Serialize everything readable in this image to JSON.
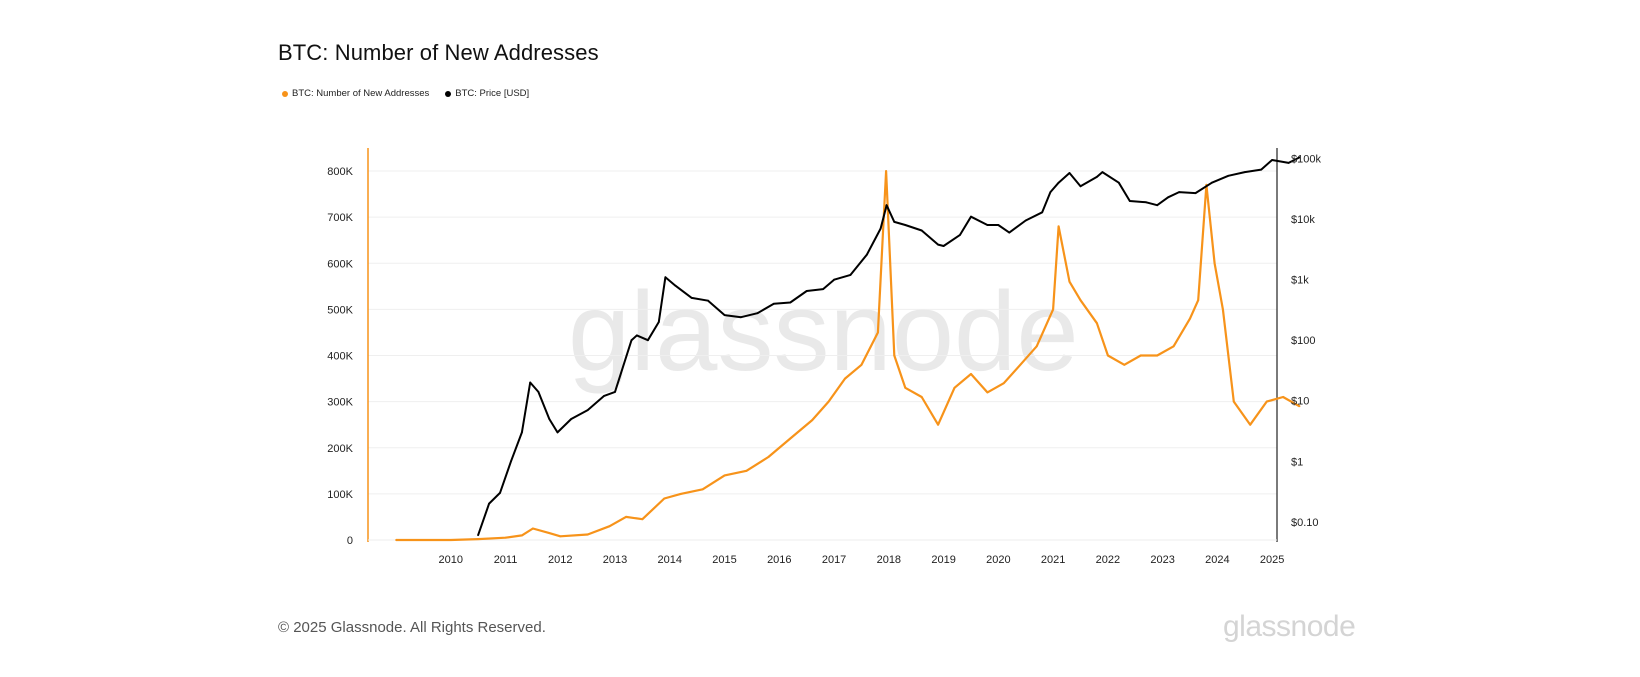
{
  "title": "BTC: Number of New Addresses",
  "legend": [
    {
      "label": "BTC: Number of New Addresses",
      "color": "#f7931a"
    },
    {
      "label": "BTC: Price [USD]",
      "color": "#000000"
    }
  ],
  "watermark": "glassnode",
  "footer": {
    "copyright": "© 2025 Glassnode. All Rights Reserved.",
    "logo": "glassnode"
  },
  "chart_data": {
    "type": "line",
    "title": "BTC: Number of New Addresses",
    "x_ticks": [
      "2010",
      "2011",
      "2012",
      "2013",
      "2014",
      "2015",
      "2016",
      "2017",
      "2018",
      "2019",
      "2020",
      "2021",
      "2022",
      "2023",
      "2024",
      "2025"
    ],
    "x_range": [
      2009.0,
      2025.6
    ],
    "y_left": {
      "ticks": [
        "0",
        "100K",
        "200K",
        "300K",
        "400K",
        "500K",
        "600K",
        "700K",
        "800K"
      ],
      "range": [
        0,
        850000
      ]
    },
    "y_right": {
      "scale": "log",
      "ticks": [
        "$0.10",
        "$1",
        "$10",
        "$100",
        "$1k",
        "$10k",
        "$100k"
      ],
      "range": [
        0.05,
        150000
      ]
    },
    "grid": true,
    "legend_position": "top-left",
    "series": [
      {
        "name": "BTC: Number of New Addresses",
        "axis": "left",
        "color": "#f7931a",
        "x": [
          2009.0,
          2010.0,
          2010.5,
          2011.0,
          2011.3,
          2011.5,
          2011.8,
          2012.0,
          2012.5,
          2012.9,
          2013.2,
          2013.5,
          2013.9,
          2014.2,
          2014.6,
          2015.0,
          2015.4,
          2015.8,
          2016.2,
          2016.6,
          2016.9,
          2017.2,
          2017.5,
          2017.8,
          2017.95,
          2018.1,
          2018.3,
          2018.6,
          2018.9,
          2019.2,
          2019.5,
          2019.8,
          2020.1,
          2020.4,
          2020.7,
          2021.0,
          2021.1,
          2021.3,
          2021.5,
          2021.8,
          2022.0,
          2022.3,
          2022.6,
          2022.9,
          2023.2,
          2023.5,
          2023.65,
          2023.8,
          2023.95,
          2024.1,
          2024.3,
          2024.6,
          2024.9,
          2025.2,
          2025.5
        ],
        "values": [
          0,
          0,
          2000,
          5000,
          10000,
          25000,
          15000,
          8000,
          12000,
          30000,
          50000,
          45000,
          90000,
          100000,
          110000,
          140000,
          150000,
          180000,
          220000,
          260000,
          300000,
          350000,
          380000,
          450000,
          800000,
          400000,
          330000,
          310000,
          250000,
          330000,
          360000,
          320000,
          340000,
          380000,
          420000,
          500000,
          680000,
          560000,
          520000,
          470000,
          400000,
          380000,
          400000,
          400000,
          420000,
          480000,
          520000,
          770000,
          600000,
          500000,
          300000,
          250000,
          300000,
          310000,
          290000
        ]
      },
      {
        "name": "BTC: Price [USD]",
        "axis": "right",
        "color": "#000000",
        "x": [
          2010.5,
          2010.7,
          2010.9,
          2011.1,
          2011.3,
          2011.45,
          2011.6,
          2011.8,
          2011.95,
          2012.2,
          2012.5,
          2012.8,
          2013.0,
          2013.3,
          2013.4,
          2013.6,
          2013.8,
          2013.92,
          2014.1,
          2014.4,
          2014.7,
          2015.0,
          2015.3,
          2015.6,
          2015.9,
          2016.2,
          2016.5,
          2016.8,
          2017.0,
          2017.3,
          2017.6,
          2017.85,
          2017.96,
          2018.1,
          2018.3,
          2018.6,
          2018.9,
          2019.0,
          2019.3,
          2019.5,
          2019.8,
          2020.0,
          2020.2,
          2020.5,
          2020.8,
          2020.95,
          2021.1,
          2021.3,
          2021.5,
          2021.8,
          2021.9,
          2022.2,
          2022.4,
          2022.7,
          2022.9,
          2023.1,
          2023.3,
          2023.6,
          2023.9,
          2024.2,
          2024.5,
          2024.8,
          2025.0,
          2025.3,
          2025.5
        ],
        "values": [
          0.06,
          0.2,
          0.3,
          1.0,
          3.0,
          20,
          14,
          5,
          3,
          5,
          7,
          12,
          14,
          100,
          120,
          100,
          200,
          1100,
          800,
          500,
          450,
          260,
          240,
          280,
          400,
          420,
          650,
          700,
          1000,
          1200,
          2600,
          7000,
          17000,
          9000,
          8000,
          6500,
          3800,
          3600,
          5500,
          11000,
          8000,
          8000,
          6000,
          9500,
          13000,
          28000,
          40000,
          58000,
          35000,
          50000,
          60000,
          40000,
          20000,
          19000,
          17000,
          23000,
          28000,
          27000,
          40000,
          52000,
          60000,
          66000,
          95000,
          85000,
          105000
        ]
      }
    ]
  }
}
